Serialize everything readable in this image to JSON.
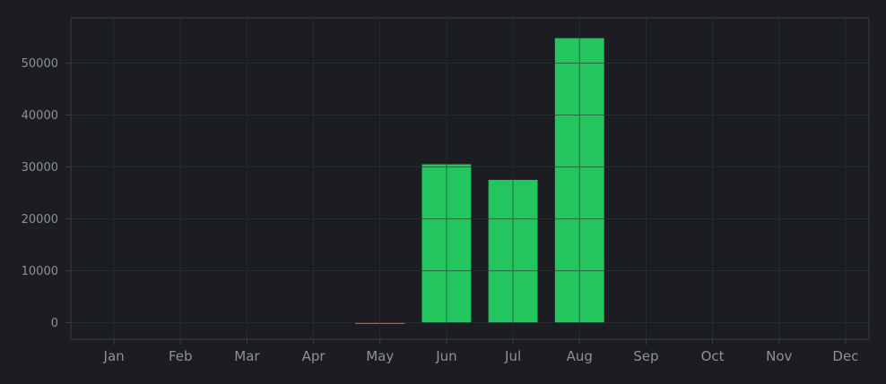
{
  "chart_data": {
    "type": "bar",
    "title": "",
    "xlabel": "",
    "ylabel": "",
    "categories": [
      "Jan",
      "Feb",
      "Mar",
      "Apr",
      "May",
      "Jun",
      "Jul",
      "Aug",
      "Sep",
      "Oct",
      "Nov",
      "Dec"
    ],
    "values": [
      0,
      0,
      0,
      0,
      -200,
      30500,
      27500,
      54800,
      0,
      0,
      0,
      0
    ],
    "ylim": [
      -3200,
      58700
    ],
    "yticks": [
      0,
      10000,
      20000,
      30000,
      40000,
      50000
    ],
    "grid": true,
    "legend": "none",
    "colors": {
      "positive": "#22c55e",
      "negative": "#ef4444",
      "background": "#1b1d23",
      "grid": "#2c2f36",
      "axis_frame": "#3a3d44",
      "tick_text": "#8d9099"
    }
  }
}
